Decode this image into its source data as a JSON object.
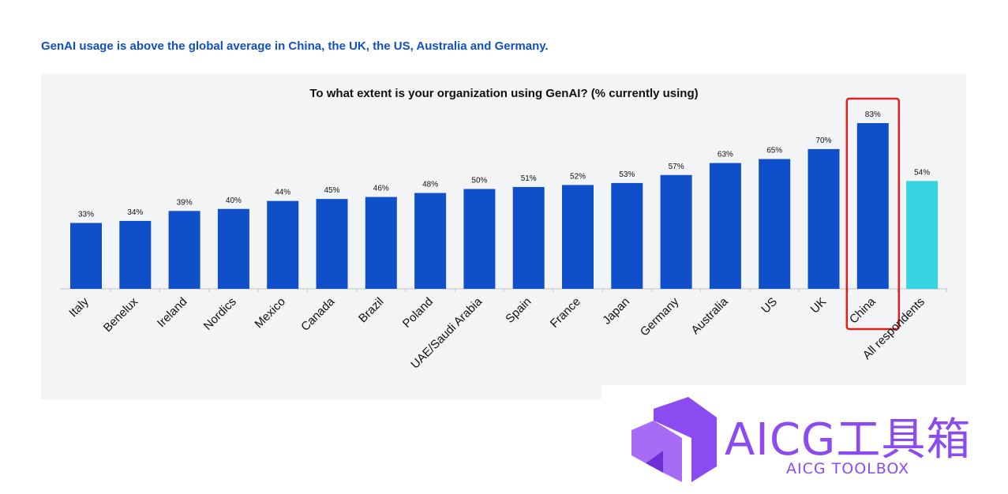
{
  "headline": "GenAI usage is above the global average in China, the UK, the US, Australia and Germany.",
  "colors": {
    "bar": "#0f4fc9",
    "highlight_bar": "#36d3e0",
    "highlight_box": "#e02020",
    "watermark": "#8b4bf0"
  },
  "chart_data": {
    "type": "bar",
    "title": "To what extent is your organization using GenAI? (% currently using)",
    "xlabel": "",
    "ylabel": "",
    "ylim": [
      0,
      90
    ],
    "grid": false,
    "legend": "none",
    "categories": [
      "Italy",
      "Benelux",
      "Ireland",
      "Nordics",
      "Mexico",
      "Canada",
      "Brazil",
      "Poland",
      "UAE/Saudi Arabia",
      "Spain",
      "France",
      "Japan",
      "Germany",
      "Australia",
      "US",
      "UK",
      "China",
      "All respondents"
    ],
    "values": [
      33,
      34,
      39,
      40,
      44,
      45,
      46,
      48,
      50,
      51,
      52,
      53,
      57,
      63,
      65,
      70,
      83,
      54
    ],
    "value_labels": [
      "33%",
      "34%",
      "39%",
      "40%",
      "44%",
      "45%",
      "46%",
      "48%",
      "50%",
      "51%",
      "52%",
      "53%",
      "57%",
      "63%",
      "65%",
      "70%",
      "83%",
      "54%"
    ],
    "average_category": "All respondents",
    "highlighted_category": "China"
  },
  "watermark": {
    "text": "AICG工具箱",
    "subtext": "AICG TOOLBOX"
  }
}
